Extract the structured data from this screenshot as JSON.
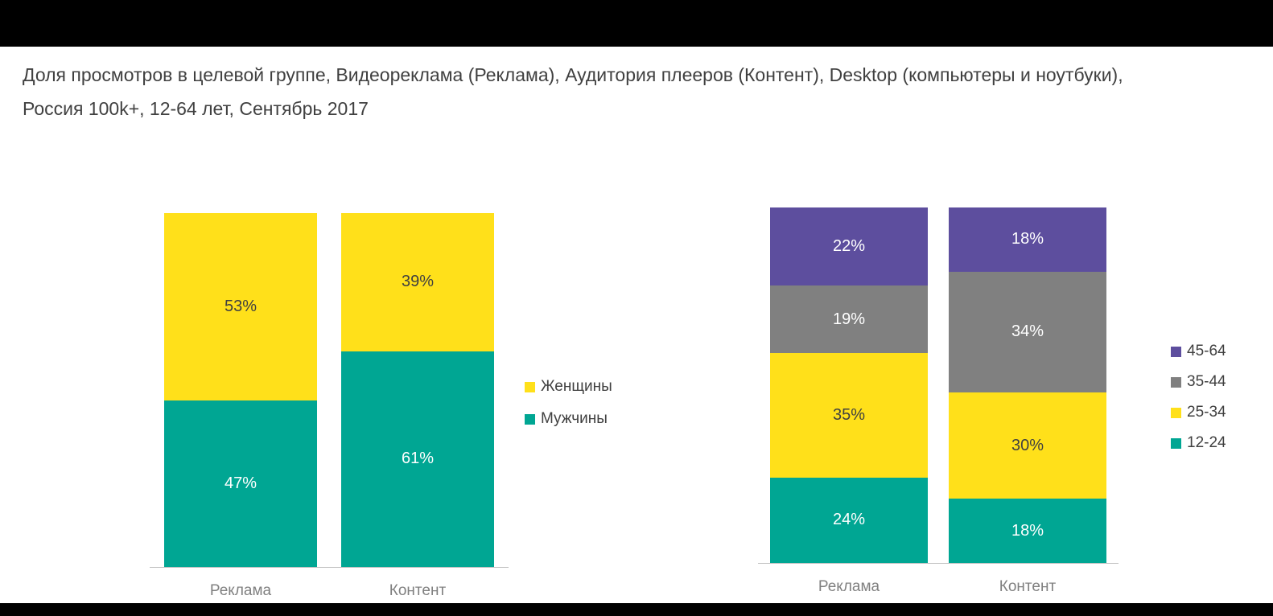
{
  "title": "Доля просмотров в целевой группе, Видеореклама (Реклама), Аудитория плееров (Контент), Desktop (компьютеры и ноутбуки), Россия 100k+, 12-64 лет, Сентябрь 2017",
  "colors": {
    "teal": "#00A693",
    "yellow": "#FFE01A",
    "gray": "#808080",
    "purple": "#5D4E9E",
    "title_text": "#404040",
    "axis_text": "#808080",
    "background": "#FFFFFF",
    "frame": "#000000"
  },
  "chart_data": [
    {
      "type": "bar",
      "stacked": true,
      "title": "",
      "categories": [
        "Реклама",
        "Контент"
      ],
      "series": [
        {
          "name": "Мужчины",
          "color": "#00A693",
          "label_color": "#FFFFFF",
          "values": [
            47,
            61
          ]
        },
        {
          "name": "Женщины",
          "color": "#FFE01A",
          "label_color": "#404040",
          "values": [
            53,
            39
          ]
        }
      ],
      "legend": [
        "Женщины",
        "Мужчины"
      ],
      "legend_position": "right",
      "ylim": [
        0,
        100
      ],
      "grid": false,
      "value_suffix": "%"
    },
    {
      "type": "bar",
      "stacked": true,
      "title": "",
      "categories": [
        "Реклама",
        "Контент"
      ],
      "series": [
        {
          "name": "12-24",
          "color": "#00A693",
          "label_color": "#FFFFFF",
          "values": [
            24,
            18
          ]
        },
        {
          "name": "25-34",
          "color": "#FFE01A",
          "label_color": "#404040",
          "values": [
            35,
            30
          ]
        },
        {
          "name": "35-44",
          "color": "#808080",
          "label_color": "#FFFFFF",
          "values": [
            19,
            34
          ]
        },
        {
          "name": "45-64",
          "color": "#5D4E9E",
          "label_color": "#FFFFFF",
          "values": [
            22,
            18
          ]
        }
      ],
      "legend": [
        "45-64",
        "35-44",
        "25-34",
        "12-24"
      ],
      "legend_position": "right",
      "ylim": [
        0,
        100
      ],
      "grid": false,
      "value_suffix": "%"
    }
  ]
}
